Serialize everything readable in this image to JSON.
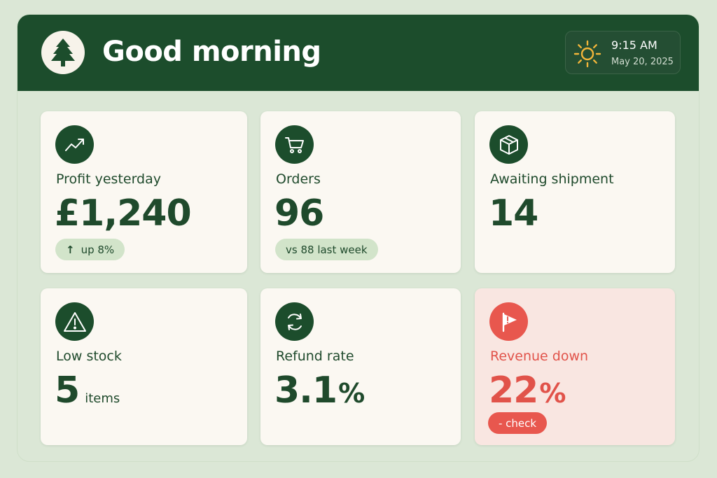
{
  "header": {
    "greeting": "Good morning",
    "logo_icon": "tree-icon",
    "clock": {
      "icon": "sun-icon",
      "time": "9:15 AM",
      "date": "May 20, 2025"
    }
  },
  "colors": {
    "brand_green": "#1c4d2c",
    "background": "#dbe7d6",
    "card": "#fbf8f2",
    "alert_red": "#e8574e",
    "alert_bg": "#f9e6e1",
    "pill_green": "#d2e4ca"
  },
  "cards": [
    {
      "icon": "trending-up-icon",
      "label": "Profit yesterday",
      "value": "£1,240",
      "pill_arrow": "↑",
      "pill": "up 8%"
    },
    {
      "icon": "cart-icon",
      "label": "Orders",
      "value": "96",
      "pill": "vs 88 last week"
    },
    {
      "icon": "package-icon",
      "label": "Awaiting shipment",
      "value": "14"
    },
    {
      "icon": "warning-icon",
      "label": "Low stock",
      "value": "5",
      "unit": "items"
    },
    {
      "icon": "refresh-icon",
      "label": "Refund rate",
      "value": "3.1",
      "unit": "%"
    },
    {
      "icon": "flag-alert-icon",
      "label": "Revenue down",
      "value": "22",
      "unit": "%",
      "pill": "- check",
      "status": "alert"
    }
  ]
}
